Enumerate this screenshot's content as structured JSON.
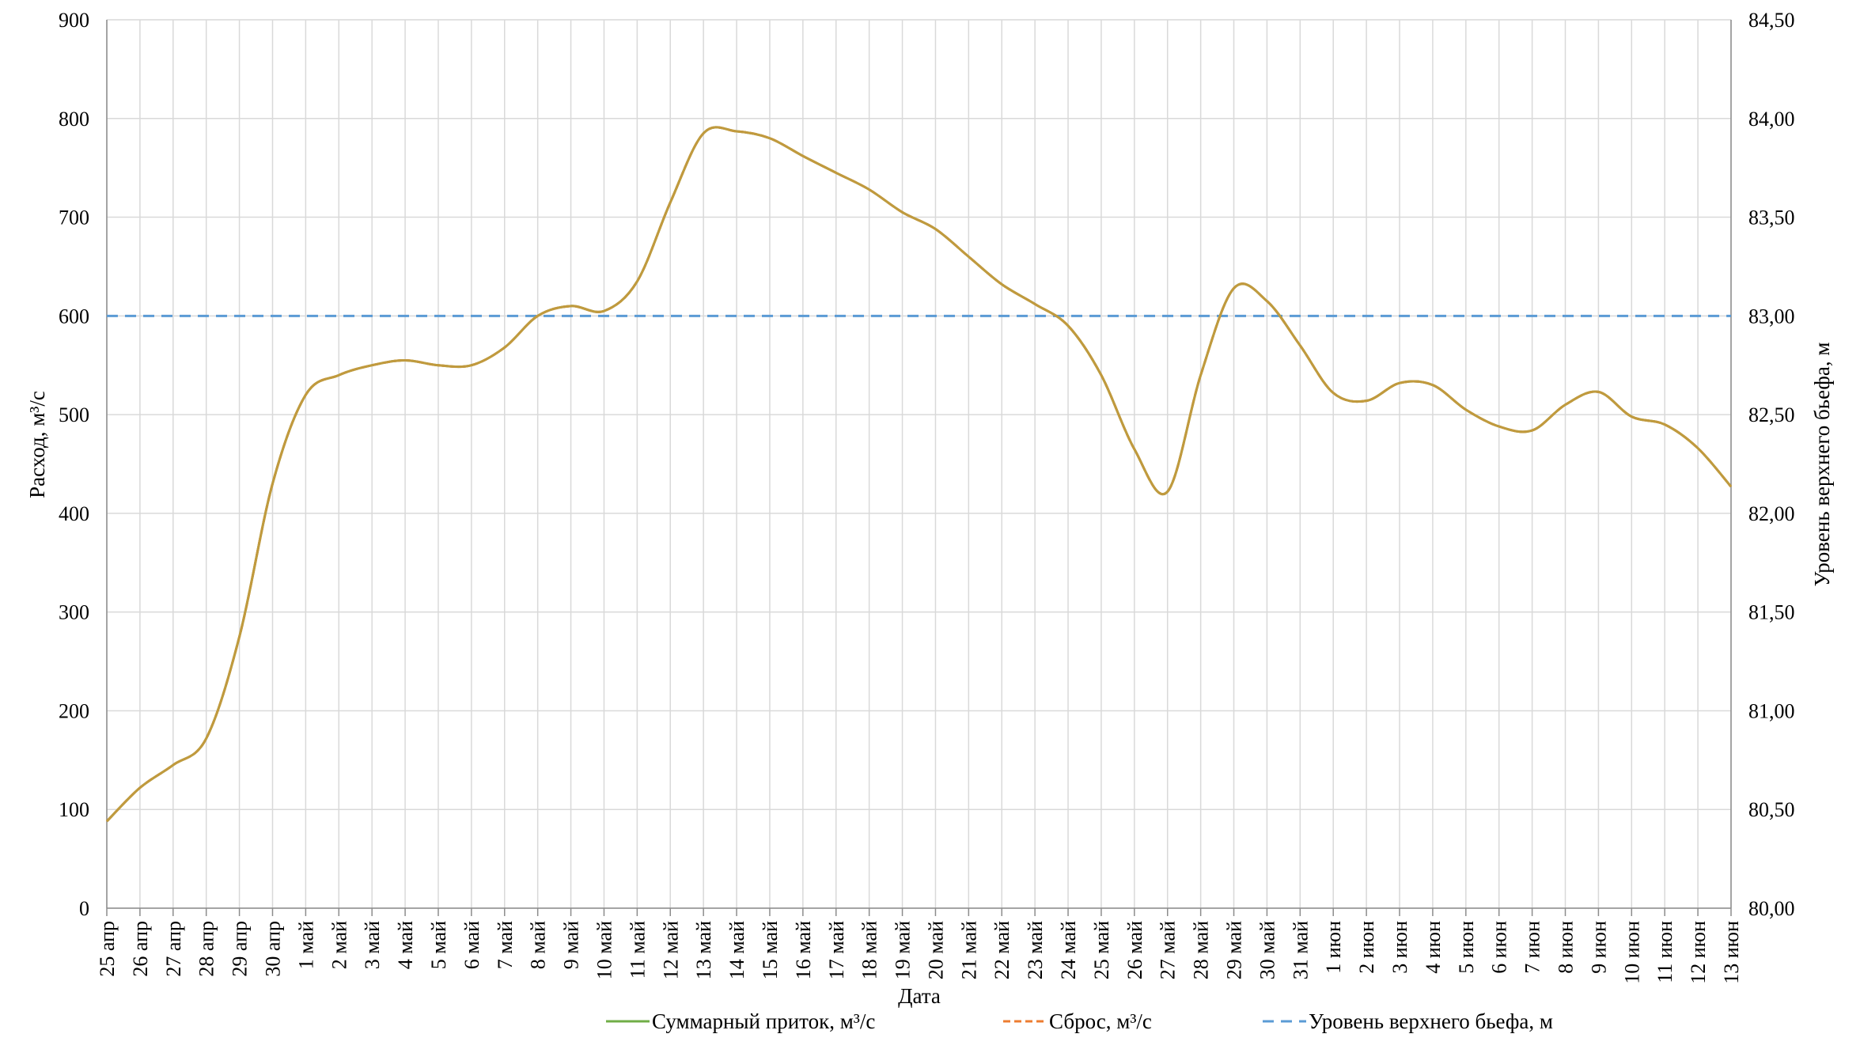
{
  "chart_data": {
    "type": "line",
    "title": "",
    "xlabel": "Дата",
    "ylabel": "Расход, м³/с",
    "y2label": "Уровень верхнего бьефа, м",
    "ylim": [
      0,
      900
    ],
    "y2lim": [
      80.0,
      84.5
    ],
    "yticks": [
      0,
      100,
      200,
      300,
      400,
      500,
      600,
      700,
      800,
      900
    ],
    "y2ticks": [
      "80,00",
      "80,50",
      "81,00",
      "81,50",
      "82,00",
      "82,50",
      "83,00",
      "83,50",
      "84,00",
      "84,50"
    ],
    "categories": [
      "25 апр",
      "26 апр",
      "27 апр",
      "28 апр",
      "29 апр",
      "30 апр",
      "1 май",
      "2 май",
      "3 май",
      "4 май",
      "5 май",
      "6 май",
      "7 май",
      "8 май",
      "9 май",
      "10 май",
      "11 май",
      "12 май",
      "13 май",
      "14 май",
      "15 май",
      "16 май",
      "17 май",
      "18 май",
      "19 май",
      "20 май",
      "21 май",
      "22 май",
      "23 май",
      "24 май",
      "25 май",
      "26 май",
      "27 май",
      "28 май",
      "29 май",
      "30 май",
      "31 май",
      "1 июн",
      "2 июн",
      "3 июн",
      "4 июн",
      "5 июн",
      "6 июн",
      "7 июн",
      "8 июн",
      "9 июн",
      "10 июн",
      "11 июн",
      "12 июн",
      "13 июн"
    ],
    "grid": true,
    "legend_position": "bottom",
    "series": [
      {
        "name": "Суммарный приток, м³/с",
        "axis": "left",
        "color": "#70ad47",
        "dash": "solid",
        "values": [
          88,
          122,
          145,
          172,
          275,
          430,
          520,
          540,
          550,
          555,
          550,
          550,
          568,
          600,
          610,
          605,
          635,
          715,
          785,
          787,
          780,
          762,
          745,
          728,
          705,
          688,
          660,
          632,
          612,
          590,
          540,
          465,
          422,
          540,
          628,
          615,
          570,
          522,
          514,
          532,
          530,
          505,
          488,
          484,
          510,
          523,
          498,
          490,
          466,
          427
        ]
      },
      {
        "name": "Сброс, м³/с",
        "axis": "left",
        "color": "#ed7d31",
        "dash": "dashed",
        "values": [
          88,
          122,
          145,
          172,
          275,
          430,
          520,
          540,
          550,
          555,
          550,
          550,
          568,
          600,
          610,
          605,
          635,
          715,
          785,
          787,
          780,
          762,
          745,
          728,
          705,
          688,
          660,
          632,
          612,
          590,
          540,
          465,
          422,
          540,
          628,
          615,
          570,
          522,
          514,
          532,
          530,
          505,
          488,
          484,
          510,
          523,
          498,
          490,
          466,
          427
        ]
      },
      {
        "name": "Уровень верхнего бьефа, м",
        "axis": "right",
        "color": "#5b9bd5",
        "dash": "dashed",
        "values": [
          83.0,
          83.0,
          83.0,
          83.0,
          83.0,
          83.0,
          83.0,
          83.0,
          83.0,
          83.0,
          83.0,
          83.0,
          83.0,
          83.0,
          83.0,
          83.0,
          83.0,
          83.0,
          83.0,
          83.0,
          83.0,
          83.0,
          83.0,
          83.0,
          83.0,
          83.0,
          83.0,
          83.0,
          83.0,
          83.0,
          83.0,
          83.0,
          83.0,
          83.0,
          83.0,
          83.0,
          83.0,
          83.0,
          83.0,
          83.0,
          83.0,
          83.0,
          83.0,
          83.0,
          83.0,
          83.0,
          83.0,
          83.0,
          83.0,
          83.0
        ]
      }
    ],
    "overlap_color": "#c09a3e"
  }
}
